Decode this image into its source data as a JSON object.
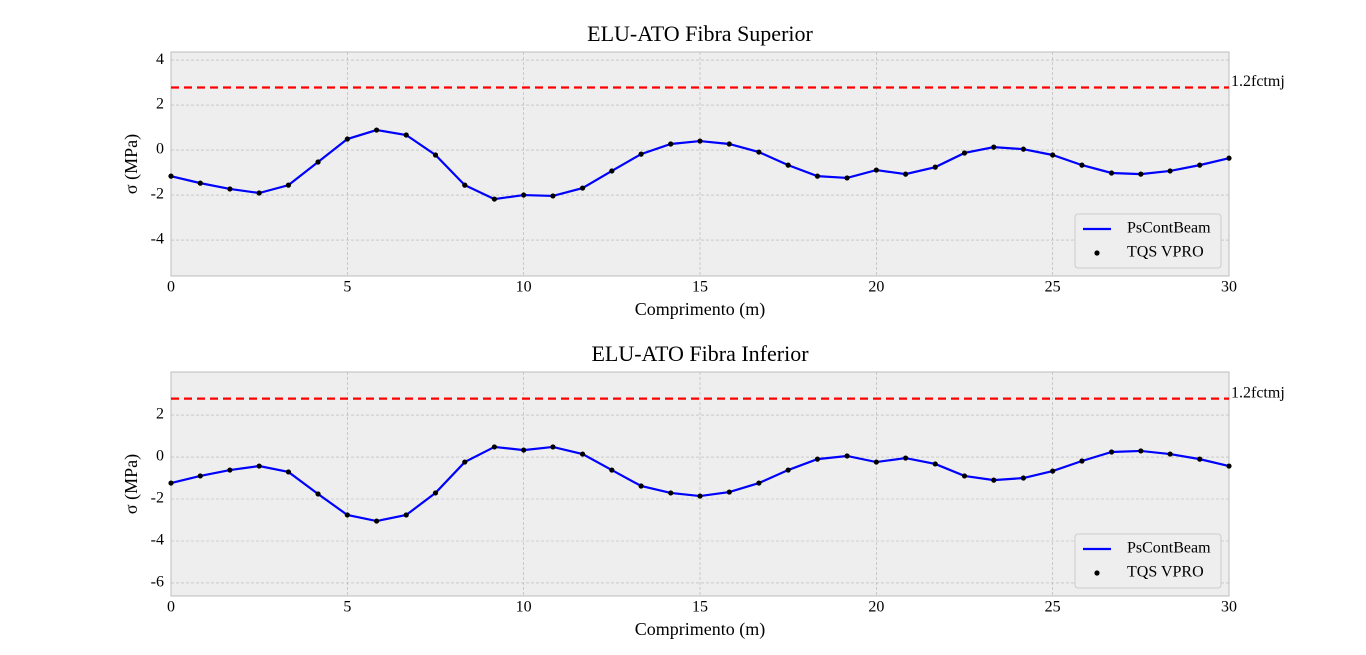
{
  "chart_data": [
    {
      "type": "line",
      "title": "ELU-ATO Fibra Superior",
      "xlabel": "Comprimento (m)",
      "ylabel": "σ (MPa)",
      "x": [
        0,
        0.83,
        1.67,
        2.5,
        3.33,
        4.17,
        5,
        5.83,
        6.67,
        7.5,
        8.33,
        9.17,
        10,
        10.83,
        11.67,
        12.5,
        13.33,
        14.17,
        15,
        15.83,
        16.67,
        17.5,
        18.33,
        19.17,
        20,
        20.83,
        21.67,
        22.5,
        23.33,
        24.17,
        25,
        25.83,
        26.67,
        27.5,
        28.33,
        29.17,
        30
      ],
      "series": [
        {
          "name": "PsContBeam",
          "color": "#0000ff",
          "style": "line",
          "values": [
            -1.16,
            -1.47,
            -1.73,
            -1.91,
            -1.56,
            -0.53,
            0.49,
            0.89,
            0.67,
            -0.22,
            -1.56,
            -2.18,
            -2.0,
            -2.04,
            -1.69,
            -0.93,
            -0.18,
            0.27,
            0.4,
            0.27,
            -0.09,
            -0.67,
            -1.16,
            -1.24,
            -0.89,
            -1.07,
            -0.76,
            -0.13,
            0.13,
            0.04,
            -0.22,
            -0.67,
            -1.02,
            -1.07,
            -0.93,
            -0.67,
            -0.36
          ]
        },
        {
          "name": "TQS VPRO",
          "color": "#000000",
          "style": "points",
          "values": [
            -1.16,
            -1.47,
            -1.73,
            -1.91,
            -1.56,
            -0.53,
            0.49,
            0.89,
            0.67,
            -0.22,
            -1.56,
            -2.18,
            -2.0,
            -2.04,
            -1.69,
            -0.93,
            -0.18,
            0.27,
            0.4,
            0.27,
            -0.09,
            -0.67,
            -1.16,
            -1.24,
            -0.89,
            -1.07,
            -0.76,
            -0.13,
            0.13,
            0.04,
            -0.22,
            -0.67,
            -1.02,
            -1.07,
            -0.93,
            -0.67,
            -0.36
          ]
        }
      ],
      "hline": {
        "value": 2.78,
        "label": "1.2fctmj",
        "color": "#ff0000"
      },
      "xlim": [
        0,
        30
      ],
      "xticks": [
        0,
        5,
        10,
        15,
        20,
        25,
        30
      ],
      "ylim": [
        -5.6,
        4.36
      ],
      "yticks": [
        -4,
        -2,
        0,
        2,
        4
      ],
      "grid": true,
      "legend": "lower right"
    },
    {
      "type": "line",
      "title": "ELU-ATO Fibra Inferior",
      "xlabel": "Comprimento (m)",
      "ylabel": "σ (MPa)",
      "x": [
        0,
        0.83,
        1.67,
        2.5,
        3.33,
        4.17,
        5,
        5.83,
        6.67,
        7.5,
        8.33,
        9.17,
        10,
        10.83,
        11.67,
        12.5,
        13.33,
        14.17,
        15,
        15.83,
        16.67,
        17.5,
        18.33,
        19.17,
        20,
        20.83,
        21.67,
        22.5,
        23.33,
        24.17,
        25,
        25.83,
        26.67,
        27.5,
        28.33,
        29.17,
        30
      ],
      "series": [
        {
          "name": "PsContBeam",
          "color": "#0000ff",
          "style": "line",
          "values": [
            -1.24,
            -0.9,
            -0.62,
            -0.43,
            -0.71,
            -1.76,
            -2.76,
            -3.05,
            -2.76,
            -1.71,
            -0.24,
            0.48,
            0.33,
            0.48,
            0.14,
            -0.62,
            -1.38,
            -1.71,
            -1.86,
            -1.67,
            -1.24,
            -0.62,
            -0.1,
            0.05,
            -0.24,
            -0.05,
            -0.33,
            -0.9,
            -1.1,
            -1.0,
            -0.67,
            -0.19,
            0.24,
            0.29,
            0.14,
            -0.1,
            -0.43
          ]
        },
        {
          "name": "TQS VPRO",
          "color": "#000000",
          "style": "points",
          "values": [
            -1.24,
            -0.9,
            -0.62,
            -0.43,
            -0.71,
            -1.76,
            -2.76,
            -3.05,
            -2.76,
            -1.71,
            -0.24,
            0.48,
            0.33,
            0.48,
            0.14,
            -0.62,
            -1.38,
            -1.71,
            -1.86,
            -1.67,
            -1.24,
            -0.62,
            -0.1,
            0.05,
            -0.24,
            -0.05,
            -0.33,
            -0.9,
            -1.1,
            -1.0,
            -0.67,
            -0.19,
            0.24,
            0.29,
            0.14,
            -0.1,
            -0.43
          ]
        }
      ],
      "hline": {
        "value": 2.78,
        "label": "1.2fctmj",
        "color": "#ff0000"
      },
      "xlim": [
        0,
        30
      ],
      "xticks": [
        0,
        5,
        10,
        15,
        20,
        25,
        30
      ],
      "ylim": [
        -6.62,
        4.05
      ],
      "yticks": [
        -6,
        -4,
        -2,
        0,
        2
      ],
      "grid": true,
      "legend": "lower right"
    }
  ]
}
